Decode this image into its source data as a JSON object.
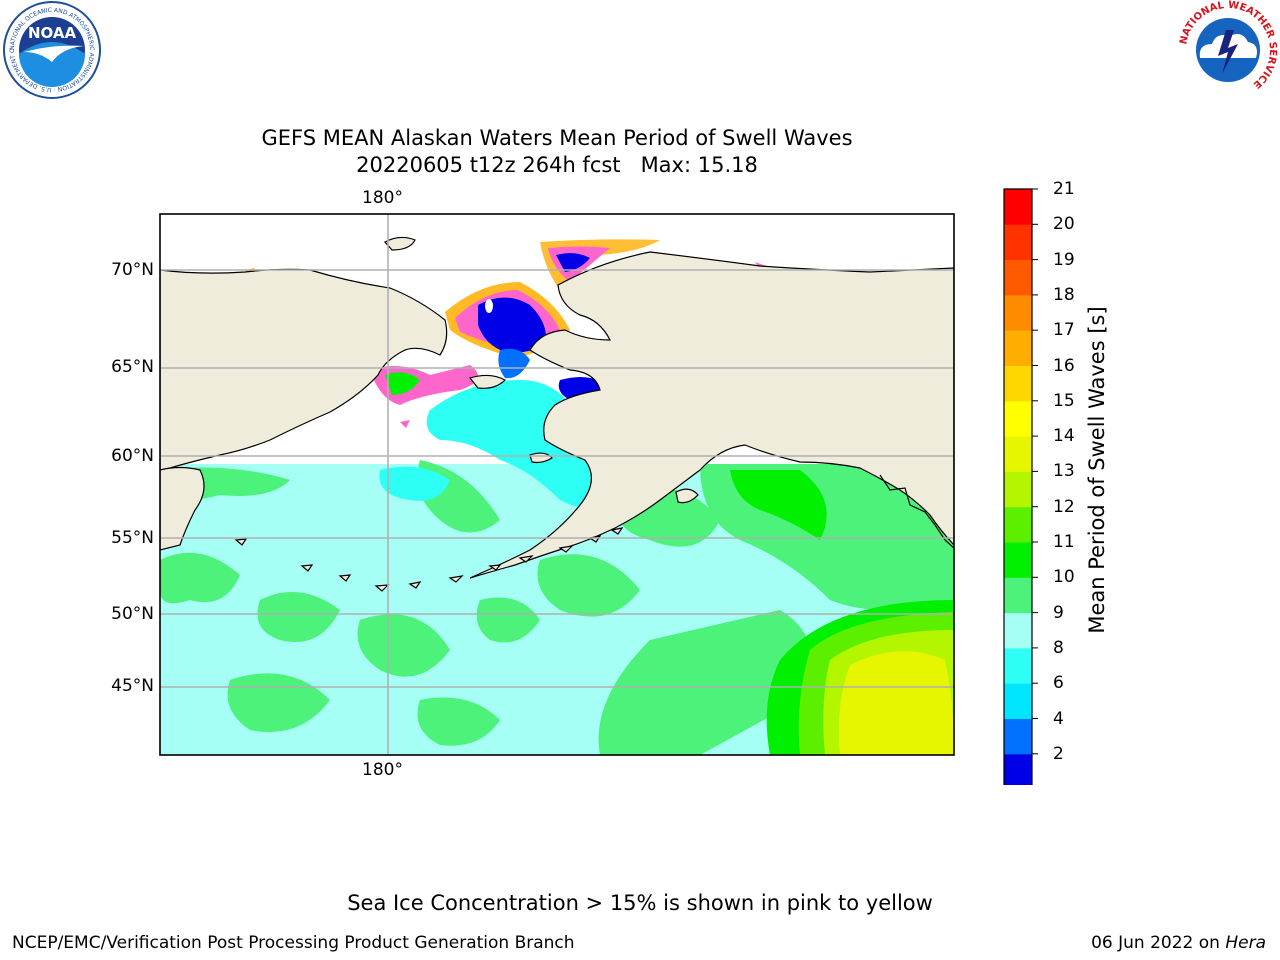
{
  "title_line1": "GEFS MEAN Alaskan Waters Mean Period of Swell Waves",
  "title_line2": "20220605 t12z 264h fcst   Max: 15.18",
  "logos": {
    "noaa_text": "NOAA",
    "noaa_ring": "NATIONAL OCEANIC AND ATMOSPHERIC ADMINISTRATION · U.S. DEPARTMENT OF COMMERCE",
    "nws_ring": "NATIONAL WEATHER SERVICE"
  },
  "map": {
    "projection": "mercator",
    "lon_range_east": [
      160,
      228
    ],
    "lat_range": [
      40.5,
      73.5
    ],
    "longitude_label_top": "180°",
    "longitude_label_bottom": "180°",
    "latitude_labels": [
      "70°N",
      "65°N",
      "60°N",
      "55°N",
      "50°N",
      "45°N"
    ],
    "grid": true,
    "colors": {
      "land": "#efecdc",
      "grid": "#b0b0b0",
      "coast": "#000000"
    }
  },
  "colorbar": {
    "label": "Mean Period of Swell Waves [s]",
    "ticks": [
      "21",
      "20",
      "19",
      "18",
      "17",
      "16",
      "15",
      "14",
      "13",
      "12",
      "11",
      "10",
      "9",
      "8",
      "6",
      "4",
      "2"
    ],
    "colors": [
      "#0000e6",
      "#0070ff",
      "#00e6ff",
      "#2efff5",
      "#a6fff5",
      "#4cf27a",
      "#00f000",
      "#5cf000",
      "#b4f500",
      "#e6f500",
      "#ffff00",
      "#ffd700",
      "#ffae00",
      "#ff8c00",
      "#ff5a00",
      "#ff3200",
      "#ff0000"
    ],
    "extend": "min"
  },
  "ice_note": "Sea Ice Concentration > 15% is shown in pink to yellow",
  "footer": {
    "left": "NCEP/EMC/Verification Post Processing Product Generation Branch",
    "right_prefix": "06 Jun 2022 on ",
    "right_machine": "Hera"
  }
}
